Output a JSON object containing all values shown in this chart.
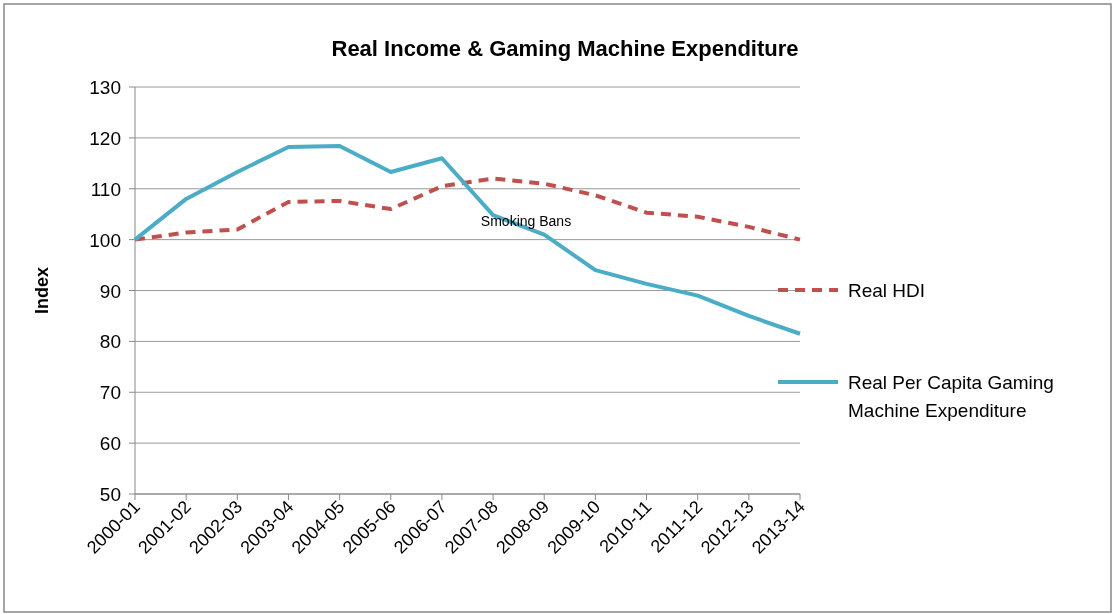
{
  "chart_data": {
    "type": "line",
    "title": "Real Income & Gaming Machine Expenditure",
    "ylabel": "Index",
    "categories": [
      "2000-01",
      "2001-02",
      "2002-03",
      "2003-04",
      "2004-05",
      "2005-06",
      "2006-07",
      "2007-08",
      "2008-09",
      "2009-10",
      "2010-11",
      "2011-12",
      "2012-13",
      "2013-14"
    ],
    "series": [
      {
        "name": "Real HDI",
        "color": "#c0504d",
        "line_style": "dashed",
        "values": [
          100,
          101.4,
          102,
          107.4,
          107.6,
          106,
          110.5,
          112,
          111,
          108.7,
          105.3,
          104.5,
          102.5,
          100
        ]
      },
      {
        "name": "Real Per Capita Gaming Machine Expenditure",
        "color": "#4bacc6",
        "line_style": "solid",
        "values": [
          100,
          108,
          113.3,
          118.2,
          118.4,
          113.3,
          116,
          104.8,
          101,
          94,
          91.3,
          89,
          85,
          81.5
        ]
      }
    ],
    "ylim": [
      50,
      130
    ],
    "yticks": [
      50,
      60,
      70,
      80,
      90,
      100,
      110,
      120,
      130
    ],
    "grid": "y",
    "legend": "right",
    "marker": "none",
    "annotations": [
      "Smoking Bans"
    ]
  }
}
